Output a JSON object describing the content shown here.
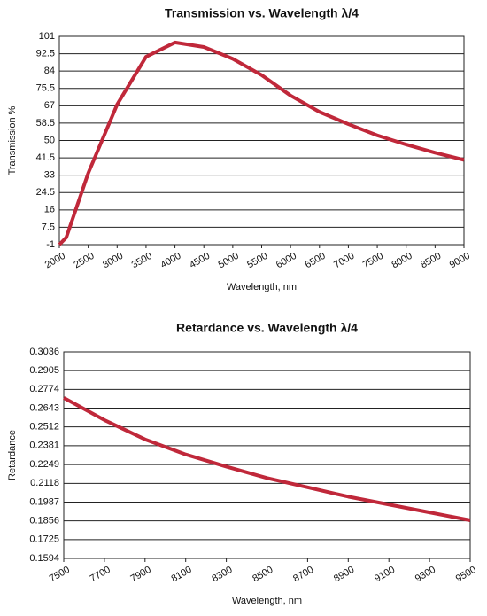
{
  "chart_data": [
    {
      "type": "line",
      "title": "Transmission vs. Wavelength λ/4",
      "x_label": "Wavelength, nm",
      "y_label": "Transmission %",
      "x": [
        2000,
        2120,
        2500,
        3000,
        3500,
        4000,
        4500,
        5000,
        5500,
        6000,
        6500,
        7000,
        7500,
        8000,
        8500,
        9000
      ],
      "series": [
        {
          "name": "Transmission",
          "color": "#c0283a",
          "values": [
            -1,
            2.5,
            34,
            67.6,
            91,
            98,
            95.8,
            90,
            82,
            72,
            64,
            58,
            52.5,
            48,
            44,
            40.5
          ]
        }
      ],
      "xlim": [
        2000,
        9000
      ],
      "xticks": [
        2000,
        2500,
        3000,
        3500,
        4000,
        4500,
        5000,
        5500,
        6000,
        6500,
        7000,
        7500,
        8000,
        8500,
        9000
      ],
      "ylim": [
        -1,
        101
      ],
      "yticks": [
        -1,
        7.5,
        16,
        24.5,
        33,
        41.5,
        50,
        58.5,
        67,
        75.5,
        84,
        92.5,
        101
      ],
      "grid": true
    },
    {
      "type": "line",
      "title": "Retardance vs. Wavelength λ/4",
      "x_label": "Wavelength, nm",
      "y_label": "Retardance",
      "x": [
        7500,
        7700,
        7900,
        8100,
        8300,
        8500,
        8700,
        8900,
        9100,
        9300,
        9500
      ],
      "series": [
        {
          "name": "Retardance",
          "color": "#c0283a",
          "values": [
            0.2715,
            0.256,
            0.2425,
            0.232,
            0.2235,
            0.2155,
            0.209,
            0.2025,
            0.197,
            0.1915,
            0.186
          ]
        }
      ],
      "xlim": [
        7500,
        9500
      ],
      "xticks": [
        7500,
        7700,
        7900,
        8100,
        8300,
        8500,
        8700,
        8900,
        9100,
        9300,
        9500
      ],
      "ylim": [
        0.1594,
        0.3036
      ],
      "yticks": [
        0.1594,
        0.1725,
        0.1856,
        0.1987,
        0.2118,
        0.2249,
        0.2381,
        0.2512,
        0.2643,
        0.2774,
        0.2905,
        0.3036
      ],
      "grid": true
    }
  ]
}
